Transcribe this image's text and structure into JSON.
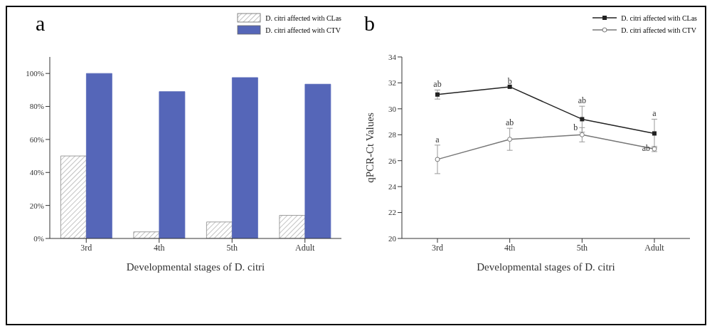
{
  "chart_data": [
    {
      "type": "bar",
      "title": "a",
      "xlabel": "Developmental stages of D. citri",
      "categories": [
        "3rd",
        "4th",
        "5th",
        "Adult"
      ],
      "series": [
        {
          "name": "D. citri affected with CLas",
          "color": "#888888",
          "values": [
            50,
            4,
            10,
            14
          ]
        },
        {
          "name": "D. citri affected with CTV",
          "color": "#5566b8",
          "values": [
            100,
            89,
            97.5,
            93.5
          ]
        }
      ],
      "ylim": [
        0,
        110
      ],
      "yticks": [
        {
          "value": 0,
          "label": "0%"
        },
        {
          "value": 20,
          "label": "20%"
        },
        {
          "value": 40,
          "label": "40%"
        },
        {
          "value": 60,
          "label": "60%"
        },
        {
          "value": 80,
          "label": "80%"
        },
        {
          "value": 100,
          "label": "100%"
        }
      ],
      "legend": "top right"
    },
    {
      "type": "line",
      "title": "b",
      "xlabel": "Developmental stages of D. citri",
      "ylabel": "qPCR-Ct Values",
      "categories": [
        "3rd",
        "4th",
        "5th",
        "Adult"
      ],
      "series": [
        {
          "name": "D. citri affected with CLas",
          "color": "#222222",
          "marker": "square",
          "values": [
            31.1,
            31.7,
            29.2,
            28.1
          ],
          "errors": [
            0.35,
            null,
            1.0,
            1.1
          ]
        },
        {
          "name": "D. citri affected with CTV",
          "color": "#777777",
          "marker": "circle",
          "values": [
            26.1,
            27.65,
            28.0,
            26.9
          ],
          "errors": [
            1.1,
            0.85,
            0.55,
            0.2
          ]
        }
      ],
      "ylim": [
        20,
        34
      ],
      "yticks": [
        20,
        22,
        24,
        26,
        28,
        30,
        32,
        34
      ],
      "legend": "top right",
      "line_style": "solid",
      "annotations": [
        {
          "text": "ab",
          "x": "3rd",
          "y": 31.5
        },
        {
          "text": "b",
          "x": "4th",
          "y": 31.7
        },
        {
          "text": "ab",
          "x": "5th",
          "y": 30.2
        },
        {
          "text": "a",
          "x": "Adult",
          "y": 29.2
        },
        {
          "text": "a",
          "x": "3rd",
          "y": 27.2
        },
        {
          "text": "ab",
          "x": "4th",
          "y": 28.5
        },
        {
          "text": "b",
          "x": "5th",
          "y": 28.6
        },
        {
          "text": "ab",
          "x": "Adult",
          "y": 27.0
        }
      ]
    }
  ]
}
